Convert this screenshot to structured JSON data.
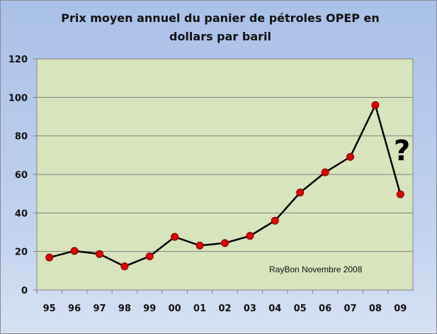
{
  "chart_data": {
    "type": "line",
    "title_line1": "Prix moyen annuel du panier de pétroles OPEP en",
    "title_line2": "dollars par baril",
    "categories": [
      "95",
      "96",
      "97",
      "98",
      "99",
      "00",
      "01",
      "02",
      "03",
      "04",
      "05",
      "06",
      "07",
      "08",
      "09"
    ],
    "values": [
      16.9,
      20.3,
      18.7,
      12.3,
      17.5,
      27.6,
      23.1,
      24.4,
      28.1,
      36.0,
      50.6,
      61.1,
      69.1,
      96.0,
      49.7
    ],
    "y_ticks": [
      0,
      20,
      40,
      60,
      80,
      100,
      120
    ],
    "ylim": [
      0,
      120
    ],
    "grid": true,
    "annotation": "RayBon Novembre 2008",
    "question_mark": "?",
    "colors": {
      "plot_bg": "#d8e4bc",
      "line": "#000000",
      "marker": "#e00000"
    }
  }
}
